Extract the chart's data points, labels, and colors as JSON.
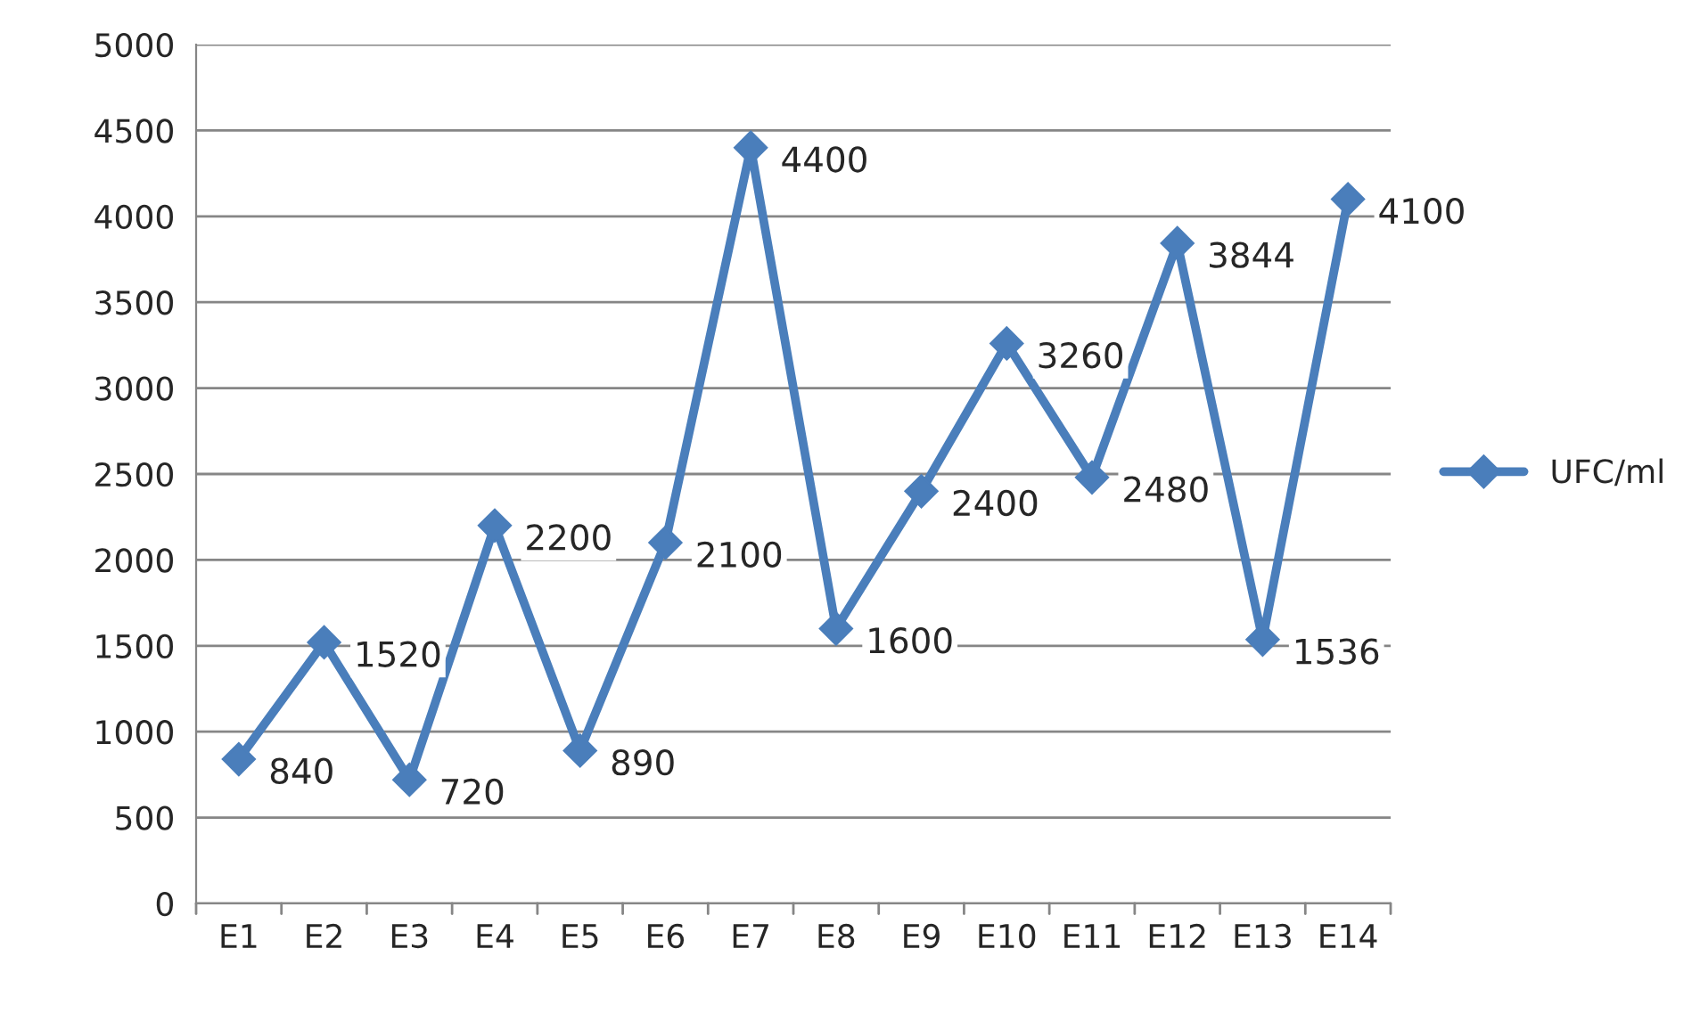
{
  "chart_data": {
    "type": "line",
    "categories": [
      "E1",
      "E2",
      "E3",
      "E4",
      "E5",
      "E6",
      "E7",
      "E8",
      "E9",
      "E10",
      "E11",
      "E12",
      "E13",
      "E14"
    ],
    "series": [
      {
        "name": "UFC/ml",
        "color": "#4a7ebb",
        "values": [
          840,
          1520,
          720,
          2200,
          890,
          2100,
          4400,
          1600,
          2400,
          3260,
          2480,
          3844,
          1536,
          4100
        ]
      }
    ],
    "ylim": [
      0,
      5000
    ],
    "yticks": [
      0,
      500,
      1000,
      1500,
      2000,
      2500,
      3000,
      3500,
      4000,
      4500,
      5000
    ],
    "grid": "y",
    "legend": "right",
    "marker": "diamond",
    "line_style": "solid",
    "data_labels": true
  }
}
